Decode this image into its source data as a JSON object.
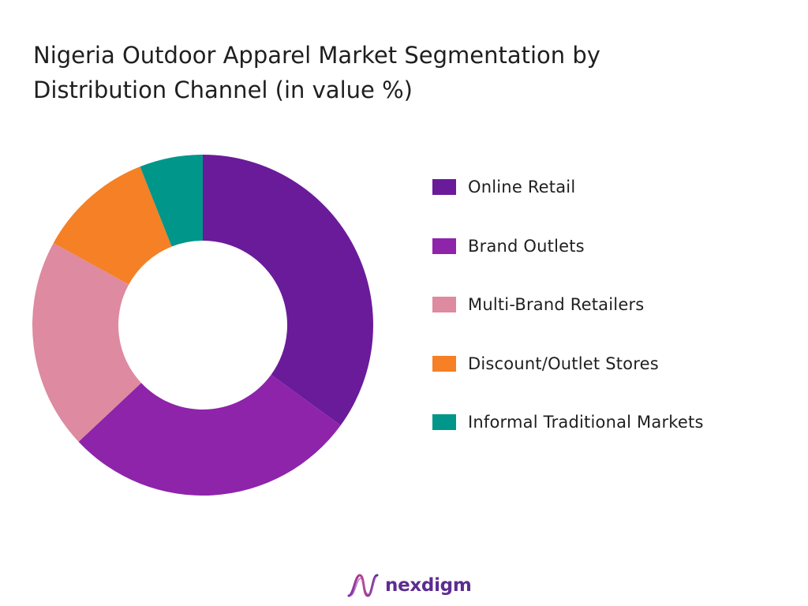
{
  "title_lines": [
    "Nigeria Outdoor Apparel Market Segmentation by",
    "Distribution Channel (in value %)"
  ],
  "chart_data": {
    "type": "pie",
    "title": "Nigeria Outdoor Apparel Market Segmentation by Distribution Channel (in value %)",
    "donut": true,
    "legend_position": "right",
    "categories": [
      "Online Retail",
      "Brand Outlets",
      "Multi-Brand Retailers",
      "Discount/Outlet Stores",
      "Informal Traditional Markets"
    ],
    "values": [
      35,
      28,
      20,
      11,
      6
    ],
    "colors": [
      "#6a1b9a",
      "#8e24aa",
      "#de8aa0",
      "#f58025",
      "#00968a"
    ]
  },
  "brand": {
    "name": "nexdigm",
    "color": "#5c2d91"
  }
}
